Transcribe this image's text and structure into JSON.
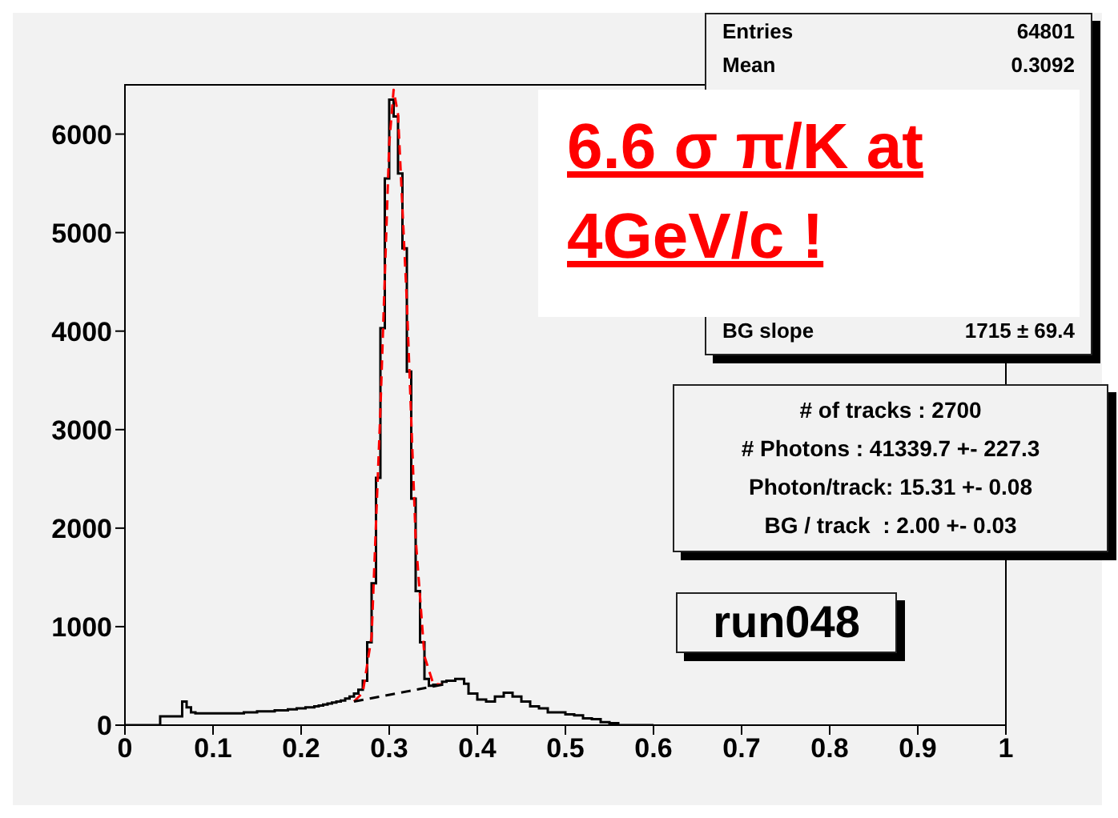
{
  "chart_data": {
    "type": "histogram",
    "bins": [
      0,
      0.005,
      0.01,
      0.015,
      0.02,
      0.025,
      0.03,
      0.035,
      0.04,
      0.045,
      0.05,
      0.055,
      0.06,
      0.065,
      0.07,
      0.075,
      0.08,
      0.085,
      0.09,
      0.095,
      0.1,
      0.105,
      0.11,
      0.115,
      0.12,
      0.125,
      0.13,
      0.135,
      0.14,
      0.145,
      0.15,
      0.155,
      0.16,
      0.165,
      0.17,
      0.175,
      0.18,
      0.185,
      0.19,
      0.195,
      0.2,
      0.205,
      0.21,
      0.215,
      0.22,
      0.225,
      0.23,
      0.235,
      0.24,
      0.245,
      0.25,
      0.255,
      0.26,
      0.265,
      0.27,
      0.275,
      0.28,
      0.285,
      0.29,
      0.295,
      0.3,
      0.305,
      0.31,
      0.315,
      0.32,
      0.325,
      0.33,
      0.335,
      0.34,
      0.345,
      0.35,
      0.355,
      0.36,
      0.365,
      0.37,
      0.375,
      0.38,
      0.385,
      0.39,
      0.395,
      0.4,
      0.405,
      0.41,
      0.415,
      0.42,
      0.425,
      0.43,
      0.435,
      0.44,
      0.445,
      0.45,
      0.455,
      0.46,
      0.465,
      0.47,
      0.475,
      0.48,
      0.485,
      0.49,
      0.495,
      0.5,
      0.505,
      0.51,
      0.515,
      0.52,
      0.525,
      0.53,
      0.535,
      0.54,
      0.545,
      0.55,
      0.555,
      0.56,
      0.565,
      0.57,
      0.575,
      0.58,
      0.585,
      0.59,
      0.595,
      0.6
    ],
    "values": [
      0,
      0,
      0,
      0,
      0,
      0,
      0,
      0,
      90,
      90,
      90,
      90,
      90,
      240,
      180,
      130,
      120,
      120,
      120,
      120,
      120,
      120,
      120,
      120,
      120,
      120,
      120,
      130,
      130,
      130,
      140,
      140,
      140,
      140,
      150,
      150,
      150,
      160,
      160,
      170,
      170,
      180,
      180,
      190,
      200,
      210,
      220,
      230,
      240,
      250,
      270,
      290,
      320,
      360,
      450,
      840,
      1440,
      2510,
      4030,
      5550,
      6350,
      6180,
      5600,
      4840,
      3590,
      2300,
      1360,
      840,
      470,
      400,
      410,
      410,
      440,
      450,
      450,
      470,
      470,
      420,
      320,
      320,
      260,
      260,
      240,
      240,
      290,
      290,
      330,
      330,
      290,
      290,
      240,
      240,
      190,
      190,
      170,
      170,
      130,
      130,
      130,
      130,
      110,
      110,
      100,
      100,
      70,
      70,
      60,
      60,
      30,
      30,
      20,
      20,
      0,
      0,
      0,
      0,
      0,
      0,
      0,
      0
    ],
    "color": "#000000",
    "series": [
      {
        "type": "line",
        "color": "#ff0000",
        "line_style": "dashed",
        "x": [
          0.26,
          0.27,
          0.28,
          0.29,
          0.3,
          0.305,
          0.31,
          0.32,
          0.33,
          0.34,
          0.35,
          0.36
        ],
        "values": [
          240,
          330,
          900,
          3200,
          5900,
          6450,
          6200,
          4300,
          1900,
          700,
          420,
          410
        ]
      },
      {
        "type": "line",
        "color": "#000000",
        "line_style": "dashed",
        "x": [
          0.26,
          0.36
        ],
        "values": [
          240,
          410
        ]
      }
    ],
    "xlim": [
      0,
      1
    ],
    "xticks": [
      0,
      0.1,
      0.2,
      0.3,
      0.4,
      0.5,
      0.6,
      0.7,
      0.8,
      0.9,
      1
    ],
    "ylim": [
      0,
      6500
    ],
    "yticks": [
      0,
      1000,
      2000,
      3000,
      4000,
      5000,
      6000
    ],
    "grid": false,
    "legend": false,
    "annotations": [
      "Entries",
      "64801",
      "Mean",
      "0.3092",
      "BG slope",
      "1715 ± 69.4",
      "6.6 σ π/K at",
      "4GeV/c !",
      "# of tracks : 2700",
      "# Photons : 41339.7 +- 227.3",
      "Photon/track: 15.31 +- 0.08",
      "BG / track  : 2.00 +- 0.03",
      "run048"
    ]
  }
}
